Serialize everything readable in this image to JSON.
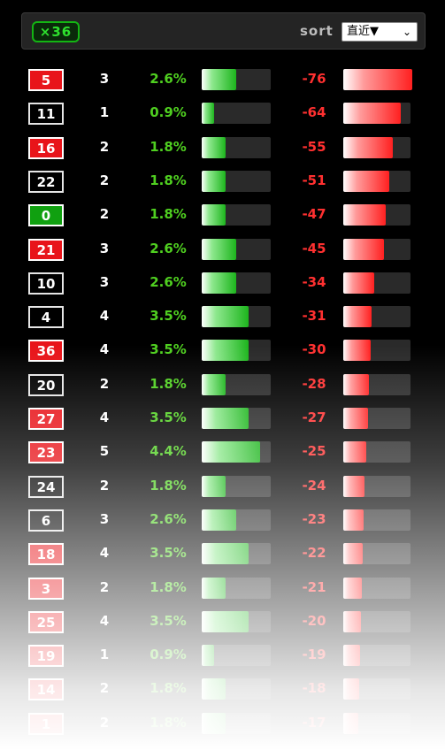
{
  "header": {
    "count_badge": "×36",
    "sort_label": "sort",
    "sort_value": "直近▼",
    "sort_chevron": "⌄"
  },
  "colors": {
    "red": "#e8141a",
    "black": "#000000",
    "green": "#10a010",
    "pct_text": "#4fcf20",
    "neg_text": "#ff3030"
  },
  "rows": [
    {
      "number": "5",
      "color": "red",
      "hits": "3",
      "pct": "2.6%",
      "pct_value": 2.6,
      "neg": "-76",
      "neg_value": -76
    },
    {
      "number": "11",
      "color": "black",
      "hits": "1",
      "pct": "0.9%",
      "pct_value": 0.9,
      "neg": "-64",
      "neg_value": -64
    },
    {
      "number": "16",
      "color": "red",
      "hits": "2",
      "pct": "1.8%",
      "pct_value": 1.8,
      "neg": "-55",
      "neg_value": -55
    },
    {
      "number": "22",
      "color": "black",
      "hits": "2",
      "pct": "1.8%",
      "pct_value": 1.8,
      "neg": "-51",
      "neg_value": -51
    },
    {
      "number": "0",
      "color": "green",
      "hits": "2",
      "pct": "1.8%",
      "pct_value": 1.8,
      "neg": "-47",
      "neg_value": -47
    },
    {
      "number": "21",
      "color": "red",
      "hits": "3",
      "pct": "2.6%",
      "pct_value": 2.6,
      "neg": "-45",
      "neg_value": -45
    },
    {
      "number": "10",
      "color": "black",
      "hits": "3",
      "pct": "2.6%",
      "pct_value": 2.6,
      "neg": "-34",
      "neg_value": -34
    },
    {
      "number": "4",
      "color": "black",
      "hits": "4",
      "pct": "3.5%",
      "pct_value": 3.5,
      "neg": "-31",
      "neg_value": -31
    },
    {
      "number": "36",
      "color": "red",
      "hits": "4",
      "pct": "3.5%",
      "pct_value": 3.5,
      "neg": "-30",
      "neg_value": -30
    },
    {
      "number": "20",
      "color": "black",
      "hits": "2",
      "pct": "1.8%",
      "pct_value": 1.8,
      "neg": "-28",
      "neg_value": -28
    },
    {
      "number": "27",
      "color": "red",
      "hits": "4",
      "pct": "3.5%",
      "pct_value": 3.5,
      "neg": "-27",
      "neg_value": -27
    },
    {
      "number": "23",
      "color": "red",
      "hits": "5",
      "pct": "4.4%",
      "pct_value": 4.4,
      "neg": "-25",
      "neg_value": -25
    },
    {
      "number": "24",
      "color": "black",
      "hits": "2",
      "pct": "1.8%",
      "pct_value": 1.8,
      "neg": "-24",
      "neg_value": -24
    },
    {
      "number": "6",
      "color": "black",
      "hits": "3",
      "pct": "2.6%",
      "pct_value": 2.6,
      "neg": "-23",
      "neg_value": -23
    },
    {
      "number": "18",
      "color": "red",
      "hits": "4",
      "pct": "3.5%",
      "pct_value": 3.5,
      "neg": "-22",
      "neg_value": -22
    },
    {
      "number": "3",
      "color": "red",
      "hits": "2",
      "pct": "1.8%",
      "pct_value": 1.8,
      "neg": "-21",
      "neg_value": -21
    },
    {
      "number": "25",
      "color": "red",
      "hits": "4",
      "pct": "3.5%",
      "pct_value": 3.5,
      "neg": "-20",
      "neg_value": -20
    },
    {
      "number": "19",
      "color": "red",
      "hits": "1",
      "pct": "0.9%",
      "pct_value": 0.9,
      "neg": "-19",
      "neg_value": -19
    },
    {
      "number": "14",
      "color": "red",
      "hits": "2",
      "pct": "1.8%",
      "pct_value": 1.8,
      "neg": "-18",
      "neg_value": -18
    },
    {
      "number": "1",
      "color": "red",
      "hits": "2",
      "pct": "1.8%",
      "pct_value": 1.8,
      "neg": "-17",
      "neg_value": -17
    }
  ]
}
